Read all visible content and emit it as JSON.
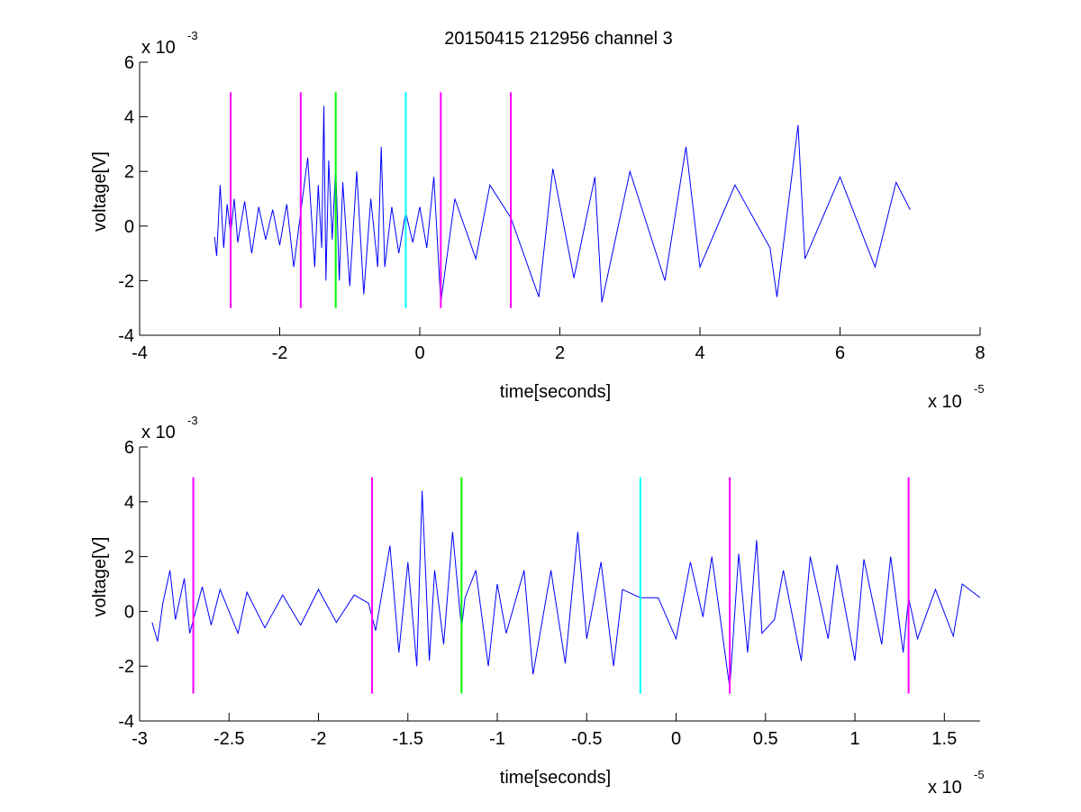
{
  "figure_title": "20150415 212956 channel 3",
  "chart_data": [
    {
      "type": "line",
      "title": "20150415 212956 channel 3",
      "xlabel": "time[seconds]",
      "ylabel": "voltage[V]",
      "xlim": [
        -4,
        8
      ],
      "ylim": [
        -4,
        6
      ],
      "x_exponent_label": "x 10",
      "x_exponent": "-5",
      "y_exponent_label": "x 10",
      "y_exponent": "-3",
      "xticks": [
        -4,
        -2,
        0,
        2,
        4,
        6,
        8
      ],
      "xtick_labels": [
        "-4",
        "-2",
        "0",
        "2",
        "4",
        "6",
        "8"
      ],
      "yticks": [
        -4,
        -2,
        0,
        2,
        4,
        6
      ],
      "ytick_labels": [
        "-4",
        "-2",
        "0",
        "2",
        "4",
        "6"
      ],
      "grid": false,
      "series": [
        {
          "color": "#0000ff",
          "x": [
            -2.93,
            -2.9,
            -2.85,
            -2.8,
            -2.75,
            -2.7,
            -2.65,
            -2.6,
            -2.5,
            -2.4,
            -2.3,
            -2.2,
            -2.1,
            -2.0,
            -1.9,
            -1.8,
            -1.7,
            -1.6,
            -1.5,
            -1.45,
            -1.4,
            -1.37,
            -1.34,
            -1.3,
            -1.25,
            -1.2,
            -1.15,
            -1.1,
            -1.0,
            -0.9,
            -0.8,
            -0.7,
            -0.6,
            -0.55,
            -0.5,
            -0.4,
            -0.3,
            -0.2,
            -0.1,
            0.0,
            0.1,
            0.2,
            0.3,
            0.5,
            0.8,
            1.0,
            1.3,
            1.7,
            1.9,
            2.2,
            2.5,
            2.6,
            3.0,
            3.5,
            3.8,
            4.0,
            4.5,
            5.0,
            5.1,
            5.4,
            5.5,
            6.0,
            6.5,
            6.8,
            7.0
          ],
          "y": [
            -0.4,
            -1.1,
            1.5,
            -0.8,
            0.8,
            -0.3,
            1.0,
            -0.6,
            0.9,
            -1.0,
            0.7,
            -0.5,
            0.6,
            -0.7,
            0.8,
            -1.5,
            0.5,
            2.5,
            -1.5,
            1.5,
            -0.8,
            4.4,
            -2.0,
            2.4,
            -0.5,
            2.2,
            -2.0,
            1.6,
            -2.2,
            2.0,
            -2.5,
            1.0,
            -1.5,
            2.9,
            -1.5,
            0.7,
            -1.0,
            0.5,
            -0.6,
            0.7,
            -0.8,
            1.8,
            -2.8,
            1.0,
            -1.2,
            1.5,
            0.3,
            -2.6,
            2.1,
            -1.9,
            1.8,
            -2.8,
            2.0,
            -2.0,
            2.9,
            -1.5,
            1.5,
            -0.8,
            -2.6,
            3.7,
            -1.2,
            1.8,
            -1.5,
            1.6,
            0.6
          ]
        }
      ],
      "vertical_markers": [
        {
          "x": -2.7,
          "color": "#ff00ff",
          "y_range": [
            -3,
            4.9
          ]
        },
        {
          "x": -1.7,
          "color": "#ff00ff",
          "y_range": [
            -3,
            4.9
          ]
        },
        {
          "x": -1.2,
          "color": "#00ff00",
          "y_range": [
            -3,
            4.9
          ]
        },
        {
          "x": -0.2,
          "color": "#00ffff",
          "y_range": [
            -3,
            4.9
          ]
        },
        {
          "x": 0.3,
          "color": "#ff00ff",
          "y_range": [
            -3,
            4.9
          ]
        },
        {
          "x": 1.3,
          "color": "#ff00ff",
          "y_range": [
            -3,
            4.9
          ]
        }
      ]
    },
    {
      "type": "line",
      "title": "",
      "xlabel": "time[seconds]",
      "ylabel": "voltage[V]",
      "xlim": [
        -3,
        1.7
      ],
      "ylim": [
        -4,
        6
      ],
      "x_exponent_label": "x 10",
      "x_exponent": "-5",
      "y_exponent_label": "x 10",
      "y_exponent": "-3",
      "xticks": [
        -3,
        -2.5,
        -2,
        -1.5,
        -1,
        -0.5,
        0,
        0.5,
        1,
        1.5
      ],
      "xtick_labels": [
        "-3",
        "-2.5",
        "-2",
        "-1.5",
        "-1",
        "-0.5",
        "0",
        "0.5",
        "1",
        "1.5"
      ],
      "yticks": [
        -4,
        -2,
        0,
        2,
        4,
        6
      ],
      "ytick_labels": [
        "-4",
        "-2",
        "0",
        "2",
        "4",
        "6"
      ],
      "grid": false,
      "series": [
        {
          "color": "#0000ff",
          "x": [
            -2.93,
            -2.9,
            -2.87,
            -2.83,
            -2.8,
            -2.75,
            -2.72,
            -2.65,
            -2.6,
            -2.55,
            -2.45,
            -2.4,
            -2.3,
            -2.2,
            -2.1,
            -2.0,
            -1.9,
            -1.8,
            -1.72,
            -1.68,
            -1.6,
            -1.55,
            -1.5,
            -1.45,
            -1.42,
            -1.38,
            -1.35,
            -1.3,
            -1.25,
            -1.2,
            -1.18,
            -1.12,
            -1.05,
            -1.0,
            -0.95,
            -0.85,
            -0.8,
            -0.7,
            -0.62,
            -0.55,
            -0.5,
            -0.42,
            -0.35,
            -0.3,
            -0.2,
            -0.1,
            0.0,
            0.08,
            0.15,
            0.2,
            0.3,
            0.35,
            0.4,
            0.45,
            0.48,
            0.55,
            0.6,
            0.7,
            0.75,
            0.85,
            0.9,
            1.0,
            1.05,
            1.15,
            1.2,
            1.27,
            1.3,
            1.35,
            1.45,
            1.55,
            1.6,
            1.7
          ],
          "y": [
            -0.4,
            -1.1,
            0.3,
            1.5,
            -0.3,
            1.2,
            -0.8,
            0.9,
            -0.5,
            0.8,
            -0.8,
            0.7,
            -0.6,
            0.6,
            -0.5,
            0.8,
            -0.4,
            0.6,
            0.3,
            -0.7,
            2.4,
            -1.5,
            1.8,
            -2.0,
            4.4,
            -1.8,
            1.5,
            -1.2,
            2.9,
            -0.6,
            0.5,
            1.5,
            -2.0,
            1.0,
            -0.8,
            1.5,
            -2.3,
            1.5,
            -1.9,
            2.9,
            -1.0,
            1.8,
            -2.0,
            0.8,
            0.5,
            0.5,
            -1.0,
            1.8,
            -0.2,
            2.0,
            -2.8,
            2.1,
            -1.5,
            2.6,
            -0.8,
            -0.3,
            1.5,
            -1.8,
            2.0,
            -1.0,
            1.7,
            -1.8,
            1.9,
            -1.2,
            2.0,
            -1.5,
            0.5,
            -1.0,
            0.8,
            -0.9,
            1.0,
            0.5
          ]
        }
      ],
      "vertical_markers": [
        {
          "x": -2.7,
          "color": "#ff00ff",
          "y_range": [
            -3,
            4.9
          ]
        },
        {
          "x": -1.7,
          "color": "#ff00ff",
          "y_range": [
            -3,
            4.9
          ]
        },
        {
          "x": -1.2,
          "color": "#00ff00",
          "y_range": [
            -3,
            4.9
          ]
        },
        {
          "x": -0.2,
          "color": "#00ffff",
          "y_range": [
            -3,
            4.9
          ]
        },
        {
          "x": 0.3,
          "color": "#ff00ff",
          "y_range": [
            -3,
            4.9
          ]
        },
        {
          "x": 1.3,
          "color": "#ff00ff",
          "y_range": [
            -3,
            4.9
          ]
        }
      ]
    }
  ]
}
